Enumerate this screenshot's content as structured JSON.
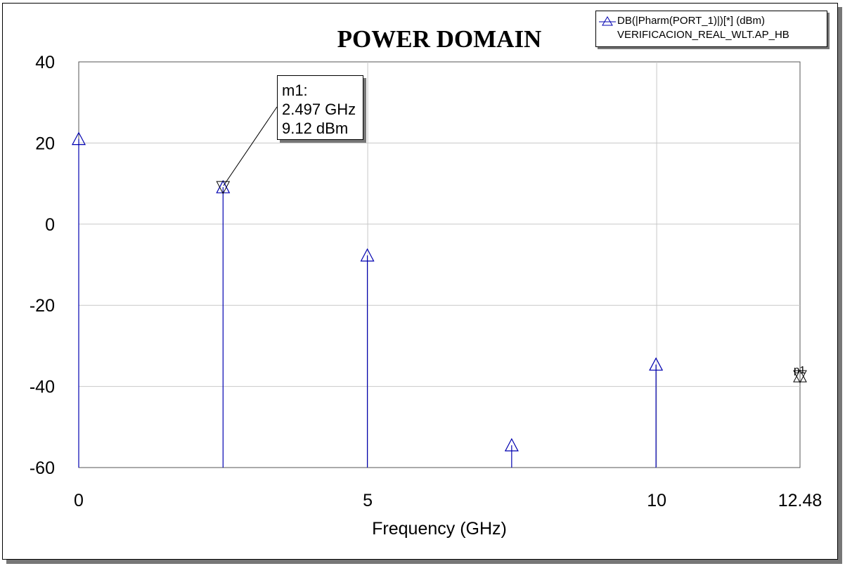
{
  "chart_data": {
    "type": "bar",
    "title": "POWER DOMAIN",
    "xlabel": "Frequency (GHz)",
    "ylabel": "",
    "xlim": [
      0,
      12.48
    ],
    "ylim": [
      -60,
      40
    ],
    "x_ticks": [
      "0",
      "5",
      "10",
      "12.48"
    ],
    "y_ticks": [
      "40",
      "20",
      "0",
      "-20",
      "-40",
      "-60"
    ],
    "series": [
      {
        "name": "DB(|Pharm(PORT_1)|)[*] (dBm)",
        "source": "VERIFICACION_REAL_WLT.AP_HB",
        "color": "#0000b0",
        "x": [
          0,
          2.497,
          4.994,
          7.491,
          9.988
        ],
        "values": [
          21.0,
          9.12,
          -7.7,
          -54.5,
          -34.6
        ]
      }
    ],
    "markers": [
      {
        "name": "m1",
        "x": 2.497,
        "y": 9.12,
        "label_x": "2.497 GHz",
        "label_y": "9.12 dBm"
      },
      {
        "name": "p1",
        "x": 12.48,
        "y": -37.5
      }
    ],
    "grid": true,
    "legend_position": "top-right"
  },
  "legend": {
    "line1": "DB(|Pharm(PORT_1)|)[*] (dBm)",
    "line2": "VERIFICACION_REAL_WLT.AP_HB"
  },
  "marker_box": {
    "name": "m1:",
    "freq": "2.497 GHz",
    "value": "9.12 dBm"
  },
  "marker_p1_label": "p1"
}
